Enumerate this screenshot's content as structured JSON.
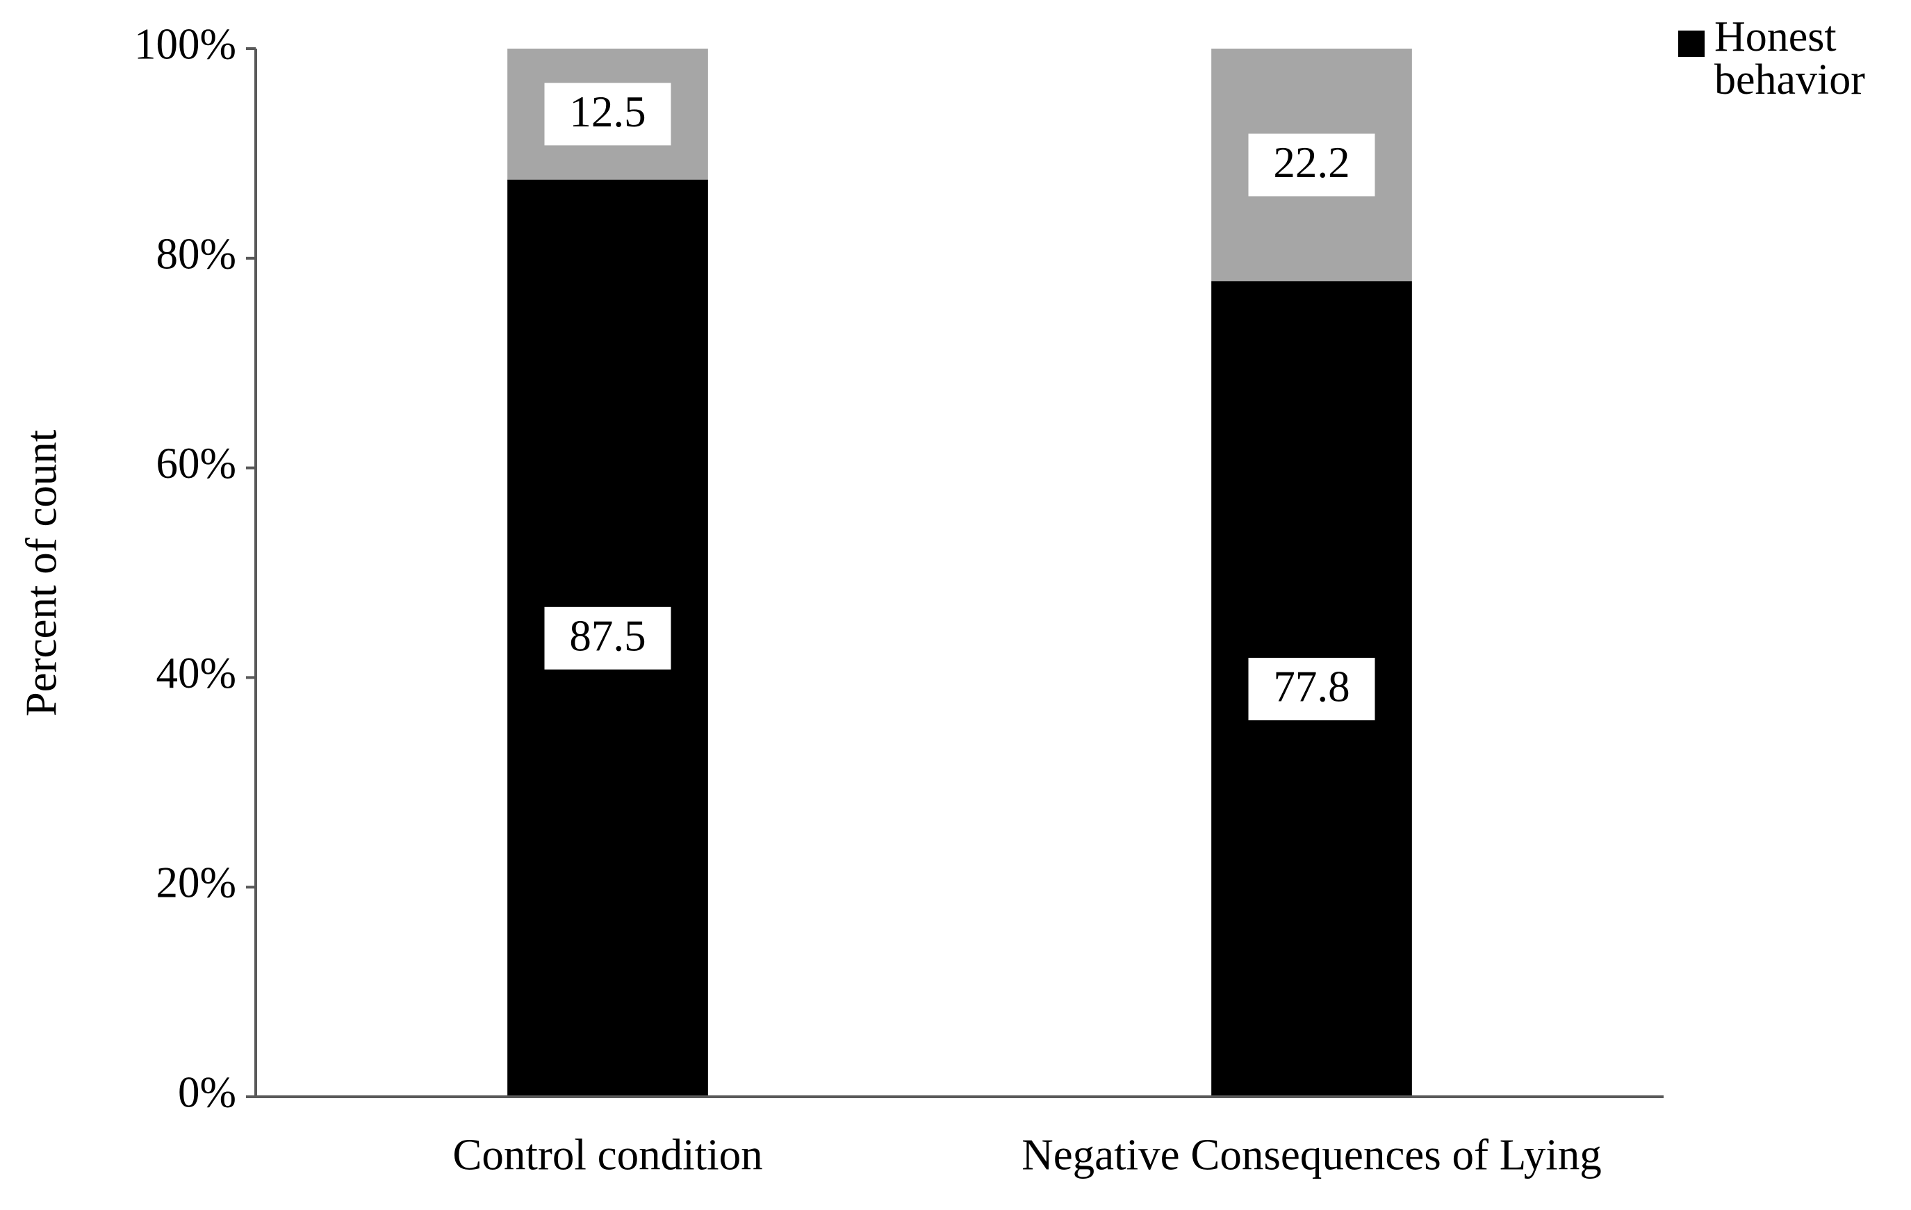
{
  "chart_data": {
    "type": "stacked_bar",
    "y_label": "Percent of count",
    "categories": [
      "Control condition",
      "Negative Consequences of Lying"
    ],
    "series": [
      {
        "name": "Honest behavior",
        "color": "#000000",
        "values": [
          87.5,
          77.8
        ]
      },
      {
        "color": "#a6a6a6",
        "values": [
          12.5,
          22.2
        ]
      }
    ],
    "ylim": [
      0,
      100
    ],
    "yticks": [
      {
        "value": 0,
        "label": "0%"
      },
      {
        "value": 20,
        "label": "20%"
      },
      {
        "value": 40,
        "label": "40%"
      },
      {
        "value": 60,
        "label": "60%"
      },
      {
        "value": 80,
        "label": "80%"
      },
      {
        "value": 100,
        "label": "100%"
      }
    ],
    "grid": false,
    "legend": "top-right"
  }
}
